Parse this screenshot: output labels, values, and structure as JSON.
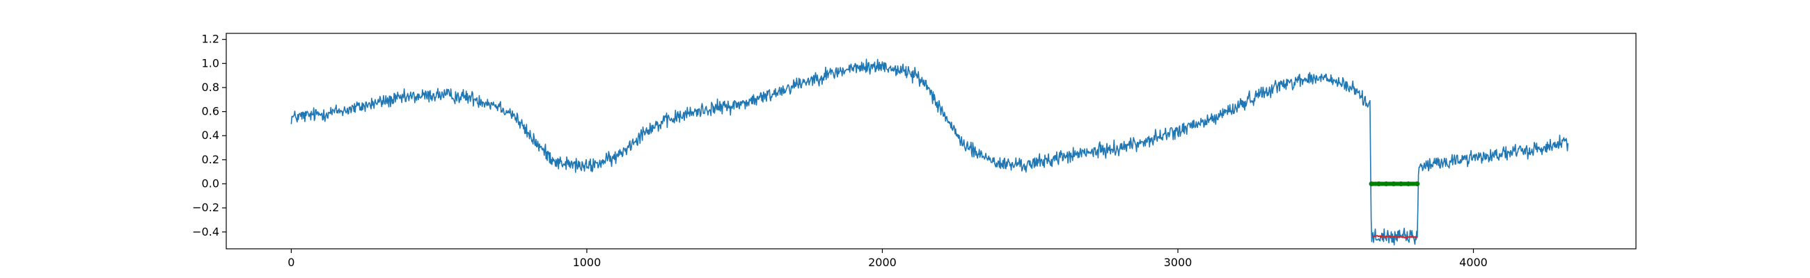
{
  "chart_data": {
    "type": "line",
    "title": "",
    "xlabel": "",
    "ylabel": "",
    "xlim": [
      -220,
      4550
    ],
    "ylim": [
      -0.54,
      1.25
    ],
    "grid": false,
    "legend": "none",
    "x_ticks": [
      0,
      1000,
      2000,
      3000,
      4000
    ],
    "x_tick_labels": [
      "0",
      "1000",
      "2000",
      "3000",
      "4000"
    ],
    "y_ticks": [
      -0.4,
      -0.2,
      0.0,
      0.2,
      0.4,
      0.6,
      0.8,
      1.0,
      1.2
    ],
    "y_tick_labels": [
      "−0.4",
      "−0.2",
      "0.0",
      "0.2",
      "0.4",
      "0.6",
      "0.8",
      "1.0",
      "1.2"
    ],
    "series": [
      {
        "color": "#1f77b4",
        "style": "line",
        "noise": 0.055,
        "x": [
          0,
          100,
          200,
          300,
          400,
          500,
          600,
          700,
          750,
          800,
          850,
          900,
          1000,
          1100,
          1200,
          1300,
          1400,
          1500,
          1600,
          1700,
          1800,
          1900,
          2000,
          2100,
          2150,
          2200,
          2250,
          2300,
          2400,
          2500,
          2600,
          2700,
          2800,
          2900,
          3000,
          3100,
          3200,
          3300,
          3400,
          3500,
          3600,
          3650,
          3655,
          3810,
          3815,
          3900,
          4000,
          4100,
          4200,
          4320
        ],
        "y": [
          0.55,
          0.58,
          0.62,
          0.68,
          0.72,
          0.74,
          0.72,
          0.65,
          0.58,
          0.42,
          0.28,
          0.18,
          0.14,
          0.22,
          0.45,
          0.55,
          0.62,
          0.65,
          0.72,
          0.82,
          0.9,
          0.96,
          0.98,
          0.92,
          0.82,
          0.62,
          0.4,
          0.28,
          0.16,
          0.16,
          0.22,
          0.26,
          0.3,
          0.36,
          0.44,
          0.52,
          0.64,
          0.78,
          0.86,
          0.88,
          0.78,
          0.65,
          -0.44,
          -0.44,
          0.14,
          0.18,
          0.22,
          0.25,
          0.28,
          0.35
        ]
      },
      {
        "color": "#d62728",
        "style": "line",
        "noise": 0.008,
        "x": [
          3660,
          3700,
          3750,
          3800,
          3810
        ],
        "y": [
          -0.43,
          -0.44,
          -0.44,
          -0.44,
          -0.44
        ]
      },
      {
        "color": "#008000",
        "style": "markers",
        "noise": 0,
        "x": [
          3655,
          3680,
          3705,
          3730,
          3755,
          3780,
          3810
        ],
        "y": [
          0.0,
          0.0,
          0.0,
          0.0,
          0.0,
          0.0,
          0.0
        ]
      }
    ]
  }
}
